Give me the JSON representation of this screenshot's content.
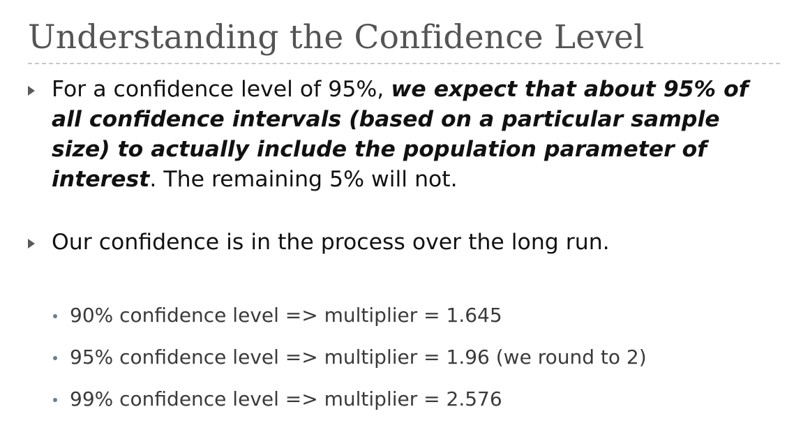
{
  "slide": {
    "title": "Understanding the Confidence Level",
    "bullets": [
      {
        "plain_intro": "For a confidence level of 95%, ",
        "emphasis": "we expect that about 95% of all confidence intervals (based on a particular sample size) to actually include the population parameter of interest",
        "plain_outro": ". The remaining 5% will not."
      },
      {
        "text": "Our confidence is in the process over the long run."
      }
    ],
    "sub_bullets": [
      "90% confidence level => multiplier = 1.645",
      "95% confidence level => multiplier = 1.96 (we round to 2)",
      "99% confidence level => multiplier = 2.576"
    ]
  }
}
